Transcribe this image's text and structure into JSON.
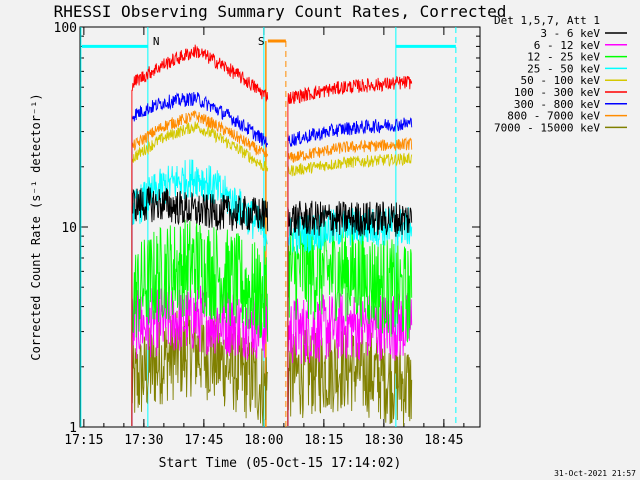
{
  "chart_data": {
    "type": "line",
    "title": "RHESSI Observing Summary Count Rates, Corrected",
    "xlabel": "Start Time (05-Oct-15 17:14:02)",
    "ylabel": "Corrected Count Rate (s⁻¹ detector⁻¹)",
    "yscale": "log",
    "ylim": [
      1,
      100
    ],
    "xlim_minutes_after_start": [
      0,
      100
    ],
    "x_ticks": [
      "17:15",
      "17:30",
      "17:45",
      "18:00",
      "18:15",
      "18:30",
      "18:45"
    ],
    "y_ticks": [
      "1",
      "10",
      "100"
    ],
    "grid": false,
    "legend_header": "Det 1,5,7, Att 1",
    "legend_placement": "right",
    "timestamp": "31-Oct-2021 21:57",
    "markers": [
      {
        "label": "N",
        "time": "17:31",
        "color": "#00ffff"
      },
      {
        "label": "S",
        "time": "18:01",
        "color": "#ff8c00"
      }
    ],
    "segments": [
      {
        "start": "17:27",
        "end": "18:01"
      },
      {
        "start": "18:06",
        "end": "18:37"
      }
    ],
    "series": [
      {
        "name": "3 - 6 keV",
        "color": "#000000",
        "values": [
          13,
          13,
          12,
          11.5,
          11,
          11,
          11
        ]
      },
      {
        "name": "6 - 12 keV",
        "color": "#ff00ff",
        "values": [
          3.2,
          3.4,
          3.5,
          3.2,
          3,
          3.2,
          3.2
        ]
      },
      {
        "name": "12 - 25 keV",
        "color": "#00ff00",
        "values": [
          4.5,
          6,
          6.5,
          4.5,
          6,
          6,
          4.5
        ]
      },
      {
        "name": "25 - 50 keV",
        "color": "#00ffff",
        "values": [
          12,
          16,
          18,
          9.5,
          9,
          10,
          10
        ]
      },
      {
        "name": "50 - 100 keV",
        "color": "#d4c800",
        "values": [
          22,
          28,
          32,
          20,
          19,
          21,
          22
        ]
      },
      {
        "name": "100 - 300 keV",
        "color": "#ff0000",
        "values": [
          52,
          65,
          76,
          46,
          44,
          50,
          53
        ]
      },
      {
        "name": "300 - 800 keV",
        "color": "#0000ff",
        "values": [
          36,
          42,
          44,
          27,
          27,
          31,
          33
        ]
      },
      {
        "name": "800 - 7000 keV",
        "color": "#ff8c00",
        "values": [
          25,
          32,
          36,
          23,
          22,
          25,
          26
        ]
      },
      {
        "name": "7000 - 15000 keV",
        "color": "#808000",
        "values": [
          1.6,
          2.2,
          2.4,
          1.6,
          1.8,
          2,
          1.6
        ]
      }
    ]
  }
}
